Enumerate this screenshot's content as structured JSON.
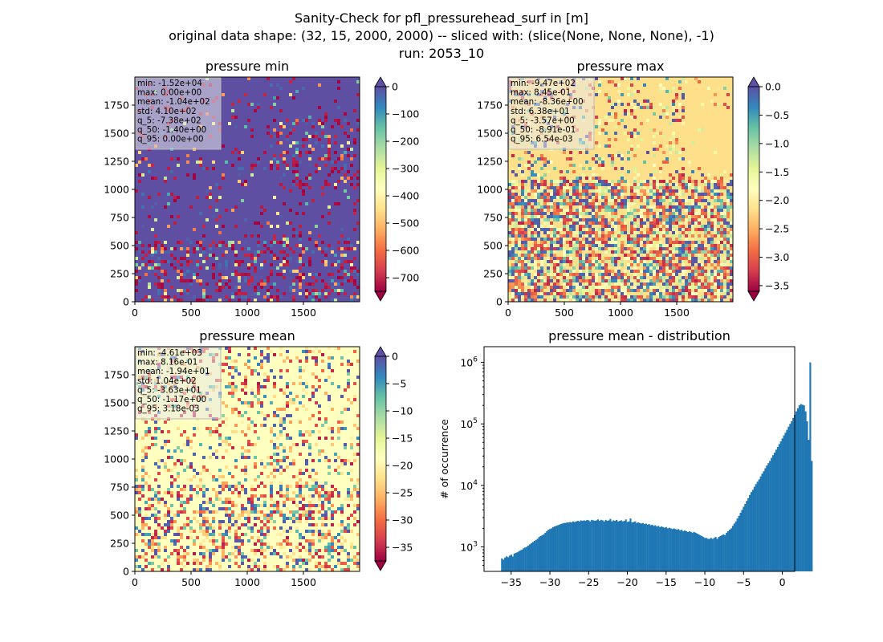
{
  "figure": {
    "title_lines": [
      "Sanity-Check for pfl_pressurehead_surf in [m]",
      "original data shape: (32, 15, 2000, 2000) -- sliced with: (slice(None, None, None), -1)",
      "run: 2053_10"
    ]
  },
  "colormap_spectral": [
    "#9e0142",
    "#d53e4f",
    "#f46d43",
    "#fdae61",
    "#fee08b",
    "#ffffbf",
    "#e6f598",
    "#abdda4",
    "#66c2a5",
    "#3288bd",
    "#5e4fa2"
  ],
  "chart_data": [
    {
      "type": "heatmap",
      "title": "pressure min",
      "xlim": [
        0,
        2000
      ],
      "ylim": [
        0,
        2000
      ],
      "xticks": [
        "0",
        "500",
        "1000",
        "1500"
      ],
      "yticks": [
        "0",
        "250",
        "500",
        "750",
        "1000",
        "1250",
        "1500",
        "1750"
      ],
      "colorbar": {
        "vmin": -750,
        "vmax": 0,
        "extend": "both",
        "ticks": [
          "0",
          "−100",
          "−200",
          "−300",
          "−400",
          "−500",
          "−600",
          "−700"
        ],
        "tick_values": [
          0,
          -100,
          -200,
          -300,
          -400,
          -500,
          -600,
          -700
        ]
      },
      "background": "#5e4fa2",
      "stats": [
        "min: -1.52e+04",
        "max: 0.00e+00",
        "mean: -1.04e+02",
        "std: 4.10e+02",
        "q_5: -7.38e+02",
        "q_50: -1.40e+00",
        "q_95: 0.00e+00"
      ]
    },
    {
      "type": "heatmap",
      "title": "pressure max",
      "xlim": [
        0,
        2000
      ],
      "ylim": [
        0,
        2000
      ],
      "xticks": [
        "0",
        "500",
        "1000",
        "1500"
      ],
      "yticks": [
        "0",
        "250",
        "500",
        "750",
        "1000",
        "1250",
        "1500",
        "1750"
      ],
      "colorbar": {
        "vmin": -3.6,
        "vmax": 0,
        "extend": "both",
        "ticks": [
          "0.0",
          "−0.5",
          "−1.0",
          "−1.5",
          "−2.0",
          "−2.5",
          "−3.0",
          "−3.5"
        ],
        "tick_values": [
          0,
          -0.5,
          -1.0,
          -1.5,
          -2.0,
          -2.5,
          -3.0,
          -3.5
        ]
      },
      "background": "#fee08b",
      "stats": [
        "min: -9.47e+02",
        "max: 8.45e-01",
        "mean: -8.36e+00",
        "std: 6.38e+01",
        "q_5: -3.57e+00",
        "q_50: -8.91e-01",
        "q_95: 6.54e-03"
      ]
    },
    {
      "type": "heatmap",
      "title": "pressure mean",
      "xlim": [
        0,
        2000
      ],
      "ylim": [
        0,
        2000
      ],
      "xticks": [
        "0",
        "500",
        "1000",
        "1500"
      ],
      "yticks": [
        "0",
        "250",
        "500",
        "750",
        "1000",
        "1250",
        "1500",
        "1750"
      ],
      "colorbar": {
        "vmin": -37.5,
        "vmax": 0,
        "extend": "both",
        "ticks": [
          "0",
          "−5",
          "−10",
          "−15",
          "−20",
          "−25",
          "−30",
          "−35"
        ],
        "tick_values": [
          0,
          -5,
          -10,
          -15,
          -20,
          -25,
          -30,
          -35
        ]
      },
      "background": "#ffffbf",
      "stats": [
        "min: -4.61e+03",
        "max: 8.16e-01",
        "mean: -1.94e+01",
        "std: 1.04e+02",
        "q_5: -3.63e+01",
        "q_50: -1.17e+00",
        "q_95: 3.18e-03"
      ]
    },
    {
      "type": "bar",
      "title": "pressure mean - distribution",
      "ylabel": "# of occurrence",
      "xlim": [
        -38.5,
        1.6
      ],
      "ylim": [
        400,
        1800000
      ],
      "log_y": true,
      "xticks": [
        "−35",
        "−30",
        "−25",
        "−20",
        "−15",
        "−10",
        "−5",
        "0"
      ],
      "xtick_values": [
        -35,
        -30,
        -25,
        -20,
        -15,
        -10,
        -5,
        0
      ],
      "yticks": [
        "10^3",
        "10^4",
        "10^5",
        "10^6"
      ],
      "color": "#1f77b4",
      "bins": {
        "start": -36.3,
        "width": 0.2
      },
      "values": [
        650,
        620,
        670,
        700,
        680,
        720,
        750,
        700,
        780,
        800,
        820,
        850,
        880,
        900,
        950,
        980,
        1000,
        1050,
        1100,
        1150,
        1200,
        1250,
        1300,
        1350,
        1450,
        1500,
        1550,
        1600,
        1700,
        1800,
        1900,
        1950,
        2000,
        2100,
        2150,
        2200,
        2250,
        2300,
        2350,
        2400,
        2450,
        2450,
        2500,
        2500,
        2550,
        2500,
        2600,
        2550,
        2600,
        2650,
        2600,
        2700,
        2650,
        2700,
        2650,
        2750,
        2700,
        2600,
        2750,
        2700,
        2650,
        2700,
        2800,
        2650,
        2750,
        2700,
        2600,
        2750,
        2650,
        2700,
        2850,
        2600,
        2700,
        2650,
        2750,
        2600,
        2650,
        2700,
        2600,
        2650,
        2800,
        2550,
        2600,
        2900,
        2500,
        2550,
        2600,
        2450,
        2500,
        2450,
        2400,
        2450,
        2350,
        2400,
        2300,
        2350,
        2250,
        2300,
        2200,
        2250,
        2150,
        2200,
        2100,
        2150,
        2100,
        2050,
        2100,
        2000,
        2050,
        2000,
        1950,
        2000,
        1950,
        1900,
        1950,
        1850,
        1900,
        1800,
        1850,
        1800,
        1750,
        1800,
        1750,
        1700,
        1750,
        1700,
        1650,
        1600,
        1550,
        1500,
        1450,
        1400,
        1400,
        1350,
        1350,
        1400,
        1350,
        1400,
        1450,
        1350,
        1450,
        1500,
        1550,
        1600,
        1550,
        1700,
        1800,
        1900,
        2000,
        2200,
        2400,
        2600,
        2900,
        3200,
        3600,
        4000,
        4500,
        5000,
        5600,
        6200,
        7000,
        7800,
        8500,
        9500,
        10500,
        11500,
        12500,
        14000,
        15500,
        17000,
        19000,
        21000,
        23000,
        25000,
        28000,
        31000,
        34000,
        38000,
        42000,
        47000,
        52000,
        58000,
        65000,
        72000,
        80000,
        90000,
        100000,
        110000,
        125000,
        140000,
        160000,
        180000,
        200000,
        210000,
        205000,
        200000,
        160000,
        110000,
        55000,
        1000000,
        25000
      ]
    }
  ]
}
